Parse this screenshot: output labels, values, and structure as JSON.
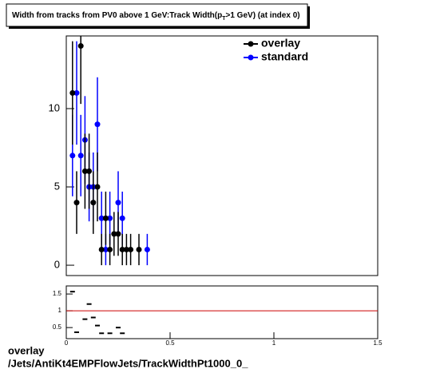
{
  "chart_data": [
    {
      "type": "scatter",
      "title": [
        "Width from tracks from PV0 above 1 GeV:Track Width(p",
        "T",
        ">1 GeV) (at index 0)"
      ],
      "xlim": [
        0,
        1.5
      ],
      "ylim": [
        -0.66,
        14.64
      ],
      "yticks": [
        0,
        5,
        10
      ],
      "legend": "top-right",
      "series": [
        {
          "name": "standard",
          "color": "#0000ff",
          "x": [
            0.03,
            0.05,
            0.07,
            0.09,
            0.11,
            0.13,
            0.15,
            0.17,
            0.19,
            0.21,
            0.25,
            0.27,
            0.39
          ],
          "values": [
            7,
            11,
            7,
            8,
            5,
            5,
            9,
            3,
            1,
            3,
            4,
            3,
            1
          ],
          "errors": [
            2.6,
            3.3,
            2.6,
            2.8,
            2.2,
            2.2,
            3,
            1.7,
            1,
            1.7,
            2,
            1.7,
            1
          ]
        },
        {
          "name": "overlay",
          "color": "#000000",
          "x": [
            0.03,
            0.05,
            0.07,
            0.09,
            0.11,
            0.13,
            0.15,
            0.17,
            0.19,
            0.21,
            0.23,
            0.25,
            0.27,
            0.29,
            0.31,
            0.35
          ],
          "values": [
            11,
            4,
            14,
            6,
            6,
            4,
            5,
            1,
            3,
            1,
            2,
            2,
            1,
            1,
            1,
            1
          ],
          "errors": [
            3.3,
            2,
            3.7,
            2.4,
            2.4,
            2,
            2.2,
            1,
            1.7,
            1,
            1.4,
            1.4,
            1,
            1,
            1,
            1
          ]
        }
      ],
      "footer": [
        "overlay",
        "/Jets/AntiKt4EMPFlowJets/TrackWidthPt1000_0_"
      ]
    },
    {
      "type": "ratio",
      "xlim": [
        0,
        1.5
      ],
      "ylim": [
        0.17,
        1.74
      ],
      "xticks": [
        0,
        0.5,
        1,
        1.5
      ],
      "yticks": [
        0.5,
        1,
        1.5
      ],
      "reference_line": 1,
      "reference_color": "#cc0000",
      "x": [
        0.03,
        0.05,
        0.09,
        0.11,
        0.13,
        0.15,
        0.17,
        0.21,
        0.25,
        0.27
      ],
      "values": [
        1.57,
        0.36,
        0.75,
        1.2,
        0.8,
        0.56,
        0.33,
        0.33,
        0.5,
        0.33
      ],
      "color": "#000000"
    }
  ]
}
